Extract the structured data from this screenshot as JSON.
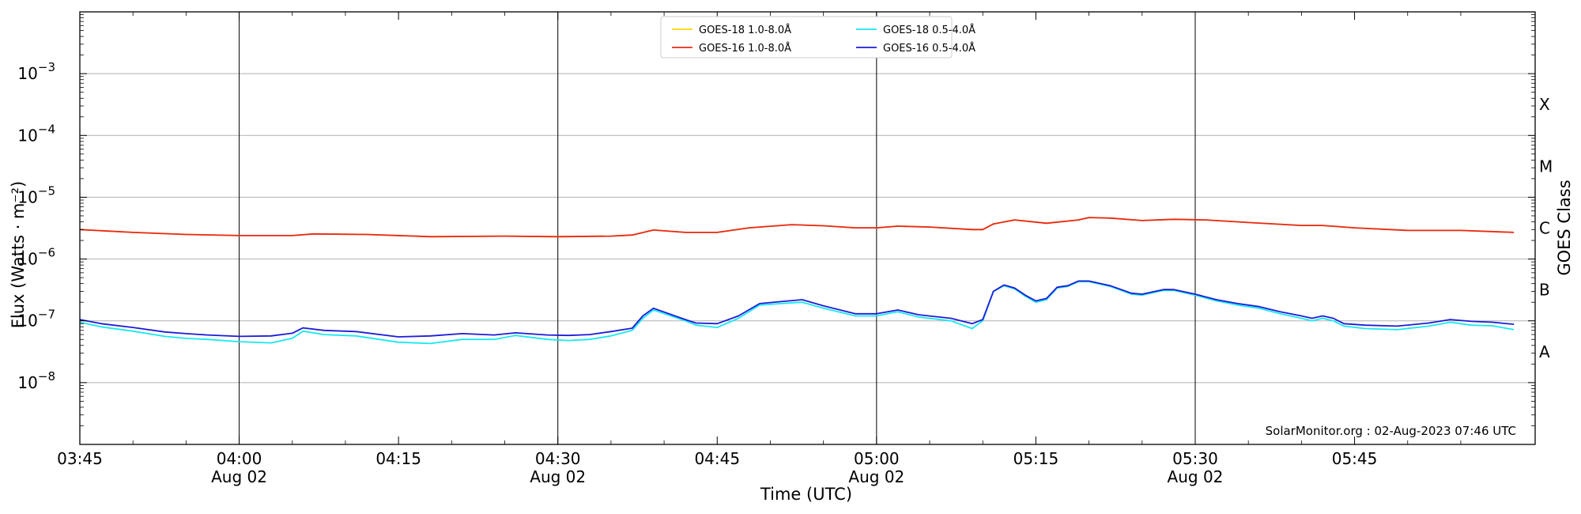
{
  "chart_data": {
    "type": "line",
    "title": "",
    "xlabel": "Time (UTC)",
    "ylabel": "Flux (Watts · m⁻²)",
    "y2label": "GOES Class",
    "yscale": "log",
    "ylim": [
      1e-09,
      0.01
    ],
    "xlim": [
      "03:45",
      "06:02"
    ],
    "grid": "horizontal at decades",
    "credit": "SolarMonitor.org : 02-Aug-2023 07:46 UTC",
    "x_ticks": [
      {
        "time": "03:45",
        "label": "03:45",
        "date": ""
      },
      {
        "time": "04:00",
        "label": "04:00",
        "date": "Aug 02"
      },
      {
        "time": "04:15",
        "label": "04:15",
        "date": ""
      },
      {
        "time": "04:30",
        "label": "04:30",
        "date": "Aug 02"
      },
      {
        "time": "04:45",
        "label": "04:45",
        "date": ""
      },
      {
        "time": "05:00",
        "label": "05:00",
        "date": "Aug 02"
      },
      {
        "time": "05:15",
        "label": "05:15",
        "date": ""
      },
      {
        "time": "05:30",
        "label": "05:30",
        "date": "Aug 02"
      },
      {
        "time": "05:45",
        "label": "05:45",
        "date": ""
      }
    ],
    "vertical_lines": [
      "04:00",
      "04:30",
      "05:00",
      "05:30"
    ],
    "y_ticks": [
      {
        "value": 1e-08,
        "base": "10",
        "exp": "−8"
      },
      {
        "value": 1e-07,
        "base": "10",
        "exp": "−7"
      },
      {
        "value": 1e-06,
        "base": "10",
        "exp": "−6"
      },
      {
        "value": 1e-05,
        "base": "10",
        "exp": "−5"
      },
      {
        "value": 0.0001,
        "base": "10",
        "exp": "−4"
      },
      {
        "value": 0.001,
        "base": "10",
        "exp": "−3"
      }
    ],
    "goes_classes": [
      {
        "label": "A",
        "value": 3.16e-08
      },
      {
        "label": "B",
        "value": 3.16e-07
      },
      {
        "label": "C",
        "value": 3.16e-06
      },
      {
        "label": "M",
        "value": 3.16e-05
      },
      {
        "label": "X",
        "value": 0.000316
      }
    ],
    "legend": {
      "placement": "top-center"
    },
    "series": [
      {
        "name": "GOES-18 1.0-8.0Å",
        "color": "#ffd700",
        "points": [
          [
            "03:45",
            3e-06
          ],
          [
            "03:50",
            2.7e-06
          ],
          [
            "03:55",
            2.5e-06
          ],
          [
            "04:00",
            2.4e-06
          ],
          [
            "04:05",
            2.4e-06
          ],
          [
            "04:07",
            2.55e-06
          ],
          [
            "04:12",
            2.5e-06
          ],
          [
            "04:18",
            2.3e-06
          ],
          [
            "04:25",
            2.35e-06
          ],
          [
            "04:30",
            2.3e-06
          ],
          [
            "04:35",
            2.35e-06
          ],
          [
            "04:37",
            2.45e-06
          ],
          [
            "04:39",
            2.95e-06
          ],
          [
            "04:42",
            2.7e-06
          ],
          [
            "04:45",
            2.7e-06
          ],
          [
            "04:48",
            3.2e-06
          ],
          [
            "04:52",
            3.6e-06
          ],
          [
            "04:55",
            3.45e-06
          ],
          [
            "04:58",
            3.2e-06
          ],
          [
            "05:00",
            3.2e-06
          ],
          [
            "05:02",
            3.4e-06
          ],
          [
            "05:05",
            3.3e-06
          ],
          [
            "05:09",
            3e-06
          ],
          [
            "05:10",
            3e-06
          ],
          [
            "05:11",
            3.7e-06
          ],
          [
            "05:13",
            4.3e-06
          ],
          [
            "05:16",
            3.8e-06
          ],
          [
            "05:19",
            4.3e-06
          ],
          [
            "05:20",
            4.7e-06
          ],
          [
            "05:22",
            4.6e-06
          ],
          [
            "05:25",
            4.2e-06
          ],
          [
            "05:28",
            4.4e-06
          ],
          [
            "05:31",
            4.3e-06
          ],
          [
            "05:35",
            3.9e-06
          ],
          [
            "05:40",
            3.5e-06
          ],
          [
            "05:42",
            3.5e-06
          ],
          [
            "05:45",
            3.2e-06
          ],
          [
            "05:50",
            2.9e-06
          ],
          [
            "05:55",
            2.9e-06
          ],
          [
            "06:00",
            2.7e-06
          ]
        ]
      },
      {
        "name": "GOES-16 1.0-8.0Å",
        "color": "#e8281c",
        "points": [
          [
            "03:45",
            3e-06
          ],
          [
            "03:50",
            2.7e-06
          ],
          [
            "03:55",
            2.5e-06
          ],
          [
            "04:00",
            2.4e-06
          ],
          [
            "04:05",
            2.4e-06
          ],
          [
            "04:07",
            2.55e-06
          ],
          [
            "04:12",
            2.5e-06
          ],
          [
            "04:18",
            2.3e-06
          ],
          [
            "04:25",
            2.35e-06
          ],
          [
            "04:30",
            2.3e-06
          ],
          [
            "04:35",
            2.35e-06
          ],
          [
            "04:37",
            2.45e-06
          ],
          [
            "04:39",
            2.95e-06
          ],
          [
            "04:42",
            2.7e-06
          ],
          [
            "04:45",
            2.7e-06
          ],
          [
            "04:48",
            3.2e-06
          ],
          [
            "04:52",
            3.6e-06
          ],
          [
            "04:55",
            3.45e-06
          ],
          [
            "04:58",
            3.2e-06
          ],
          [
            "05:00",
            3.2e-06
          ],
          [
            "05:02",
            3.4e-06
          ],
          [
            "05:05",
            3.3e-06
          ],
          [
            "05:09",
            3e-06
          ],
          [
            "05:10",
            3e-06
          ],
          [
            "05:11",
            3.7e-06
          ],
          [
            "05:13",
            4.3e-06
          ],
          [
            "05:16",
            3.8e-06
          ],
          [
            "05:19",
            4.3e-06
          ],
          [
            "05:20",
            4.7e-06
          ],
          [
            "05:22",
            4.6e-06
          ],
          [
            "05:25",
            4.2e-06
          ],
          [
            "05:28",
            4.4e-06
          ],
          [
            "05:31",
            4.3e-06
          ],
          [
            "05:35",
            3.9e-06
          ],
          [
            "05:40",
            3.5e-06
          ],
          [
            "05:42",
            3.5e-06
          ],
          [
            "05:45",
            3.2e-06
          ],
          [
            "05:50",
            2.9e-06
          ],
          [
            "05:55",
            2.9e-06
          ],
          [
            "06:00",
            2.7e-06
          ]
        ]
      },
      {
        "name": "GOES-18 0.5-4.0Å",
        "color": "#18e8f0",
        "points": [
          [
            "03:45",
            9.5e-08
          ],
          [
            "03:47",
            8e-08
          ],
          [
            "03:50",
            6.8e-08
          ],
          [
            "03:53",
            5.6e-08
          ],
          [
            "03:55",
            5.2e-08
          ],
          [
            "03:57",
            5e-08
          ],
          [
            "04:00",
            4.6e-08
          ],
          [
            "04:03",
            4.4e-08
          ],
          [
            "04:05",
            5.2e-08
          ],
          [
            "04:06",
            6.8e-08
          ],
          [
            "04:08",
            6e-08
          ],
          [
            "04:11",
            5.7e-08
          ],
          [
            "04:15",
            4.5e-08
          ],
          [
            "04:18",
            4.3e-08
          ],
          [
            "04:21",
            5e-08
          ],
          [
            "04:24",
            5e-08
          ],
          [
            "04:26",
            5.8e-08
          ],
          [
            "04:29",
            5e-08
          ],
          [
            "04:31",
            4.8e-08
          ],
          [
            "04:33",
            5e-08
          ],
          [
            "04:35",
            5.7e-08
          ],
          [
            "04:37",
            7e-08
          ],
          [
            "04:38",
            1.1e-07
          ],
          [
            "04:39",
            1.5e-07
          ],
          [
            "04:42",
            1e-07
          ],
          [
            "04:43",
            8.5e-08
          ],
          [
            "04:45",
            7.8e-08
          ],
          [
            "04:47",
            1.1e-07
          ],
          [
            "04:49",
            1.8e-07
          ],
          [
            "04:51",
            1.9e-07
          ],
          [
            "04:53",
            2e-07
          ],
          [
            "04:55",
            1.6e-07
          ],
          [
            "04:58",
            1.2e-07
          ],
          [
            "05:00",
            1.2e-07
          ],
          [
            "05:02",
            1.4e-07
          ],
          [
            "05:04",
            1.15e-07
          ],
          [
            "05:07",
            1e-07
          ],
          [
            "05:09",
            7.5e-08
          ],
          [
            "05:10",
            1e-07
          ],
          [
            "05:11",
            3e-07
          ],
          [
            "05:12",
            3.7e-07
          ],
          [
            "05:13",
            3.3e-07
          ],
          [
            "05:14",
            2.5e-07
          ],
          [
            "05:15",
            2e-07
          ],
          [
            "05:16",
            2.2e-07
          ],
          [
            "05:17",
            3.4e-07
          ],
          [
            "05:18",
            3.6e-07
          ],
          [
            "05:19",
            4.3e-07
          ],
          [
            "05:20",
            4.3e-07
          ],
          [
            "05:22",
            3.6e-07
          ],
          [
            "05:24",
            2.7e-07
          ],
          [
            "05:25",
            2.6e-07
          ],
          [
            "05:27",
            3.1e-07
          ],
          [
            "05:28",
            3.1e-07
          ],
          [
            "05:30",
            2.6e-07
          ],
          [
            "05:32",
            2.1e-07
          ],
          [
            "05:34",
            1.8e-07
          ],
          [
            "05:36",
            1.6e-07
          ],
          [
            "05:38",
            1.3e-07
          ],
          [
            "05:40",
            1.1e-07
          ],
          [
            "05:41",
            1e-07
          ],
          [
            "05:42",
            1.1e-07
          ],
          [
            "05:43",
            1e-07
          ],
          [
            "05:44",
            8.2e-08
          ],
          [
            "05:46",
            7.5e-08
          ],
          [
            "05:49",
            7.2e-08
          ],
          [
            "05:52",
            8.2e-08
          ],
          [
            "05:54",
            9.5e-08
          ],
          [
            "05:56",
            8.5e-08
          ],
          [
            "05:58",
            8.3e-08
          ],
          [
            "06:00",
            7.2e-08
          ]
        ]
      },
      {
        "name": "GOES-16 0.5-4.0Å",
        "color": "#1c1cd8",
        "points": [
          [
            "03:45",
            1.05e-07
          ],
          [
            "03:47",
            9e-08
          ],
          [
            "03:50",
            7.8e-08
          ],
          [
            "03:53",
            6.6e-08
          ],
          [
            "03:55",
            6.2e-08
          ],
          [
            "03:57",
            5.9e-08
          ],
          [
            "04:00",
            5.6e-08
          ],
          [
            "04:03",
            5.7e-08
          ],
          [
            "04:05",
            6.3e-08
          ],
          [
            "04:06",
            7.7e-08
          ],
          [
            "04:08",
            7e-08
          ],
          [
            "04:11",
            6.7e-08
          ],
          [
            "04:15",
            5.5e-08
          ],
          [
            "04:18",
            5.7e-08
          ],
          [
            "04:21",
            6.2e-08
          ],
          [
            "04:24",
            5.9e-08
          ],
          [
            "04:26",
            6.4e-08
          ],
          [
            "04:29",
            5.9e-08
          ],
          [
            "04:31",
            5.8e-08
          ],
          [
            "04:33",
            6e-08
          ],
          [
            "04:35",
            6.7e-08
          ],
          [
            "04:37",
            7.6e-08
          ],
          [
            "04:38",
            1.2e-07
          ],
          [
            "04:39",
            1.6e-07
          ],
          [
            "04:42",
            1.05e-07
          ],
          [
            "04:43",
            9.2e-08
          ],
          [
            "04:45",
            9e-08
          ],
          [
            "04:47",
            1.2e-07
          ],
          [
            "04:49",
            1.9e-07
          ],
          [
            "04:51",
            2.05e-07
          ],
          [
            "04:53",
            2.2e-07
          ],
          [
            "04:55",
            1.75e-07
          ],
          [
            "04:58",
            1.3e-07
          ],
          [
            "05:00",
            1.3e-07
          ],
          [
            "05:02",
            1.5e-07
          ],
          [
            "05:04",
            1.25e-07
          ],
          [
            "05:07",
            1.1e-07
          ],
          [
            "05:09",
            9e-08
          ],
          [
            "05:10",
            1.05e-07
          ],
          [
            "05:11",
            3e-07
          ],
          [
            "05:12",
            3.8e-07
          ],
          [
            "05:13",
            3.4e-07
          ],
          [
            "05:14",
            2.6e-07
          ],
          [
            "05:15",
            2.1e-07
          ],
          [
            "05:16",
            2.3e-07
          ],
          [
            "05:17",
            3.5e-07
          ],
          [
            "05:18",
            3.7e-07
          ],
          [
            "05:19",
            4.4e-07
          ],
          [
            "05:20",
            4.4e-07
          ],
          [
            "05:22",
            3.7e-07
          ],
          [
            "05:24",
            2.8e-07
          ],
          [
            "05:25",
            2.7e-07
          ],
          [
            "05:27",
            3.2e-07
          ],
          [
            "05:28",
            3.2e-07
          ],
          [
            "05:30",
            2.7e-07
          ],
          [
            "05:32",
            2.2e-07
          ],
          [
            "05:34",
            1.9e-07
          ],
          [
            "05:36",
            1.7e-07
          ],
          [
            "05:38",
            1.4e-07
          ],
          [
            "05:40",
            1.2e-07
          ],
          [
            "05:41",
            1.1e-07
          ],
          [
            "05:42",
            1.2e-07
          ],
          [
            "05:43",
            1.1e-07
          ],
          [
            "05:44",
            9e-08
          ],
          [
            "05:46",
            8.5e-08
          ],
          [
            "05:49",
            8.2e-08
          ],
          [
            "05:52",
            9.2e-08
          ],
          [
            "05:54",
            1.05e-07
          ],
          [
            "05:56",
            9.8e-08
          ],
          [
            "05:58",
            9.5e-08
          ],
          [
            "06:00",
            8.8e-08
          ]
        ]
      }
    ]
  }
}
